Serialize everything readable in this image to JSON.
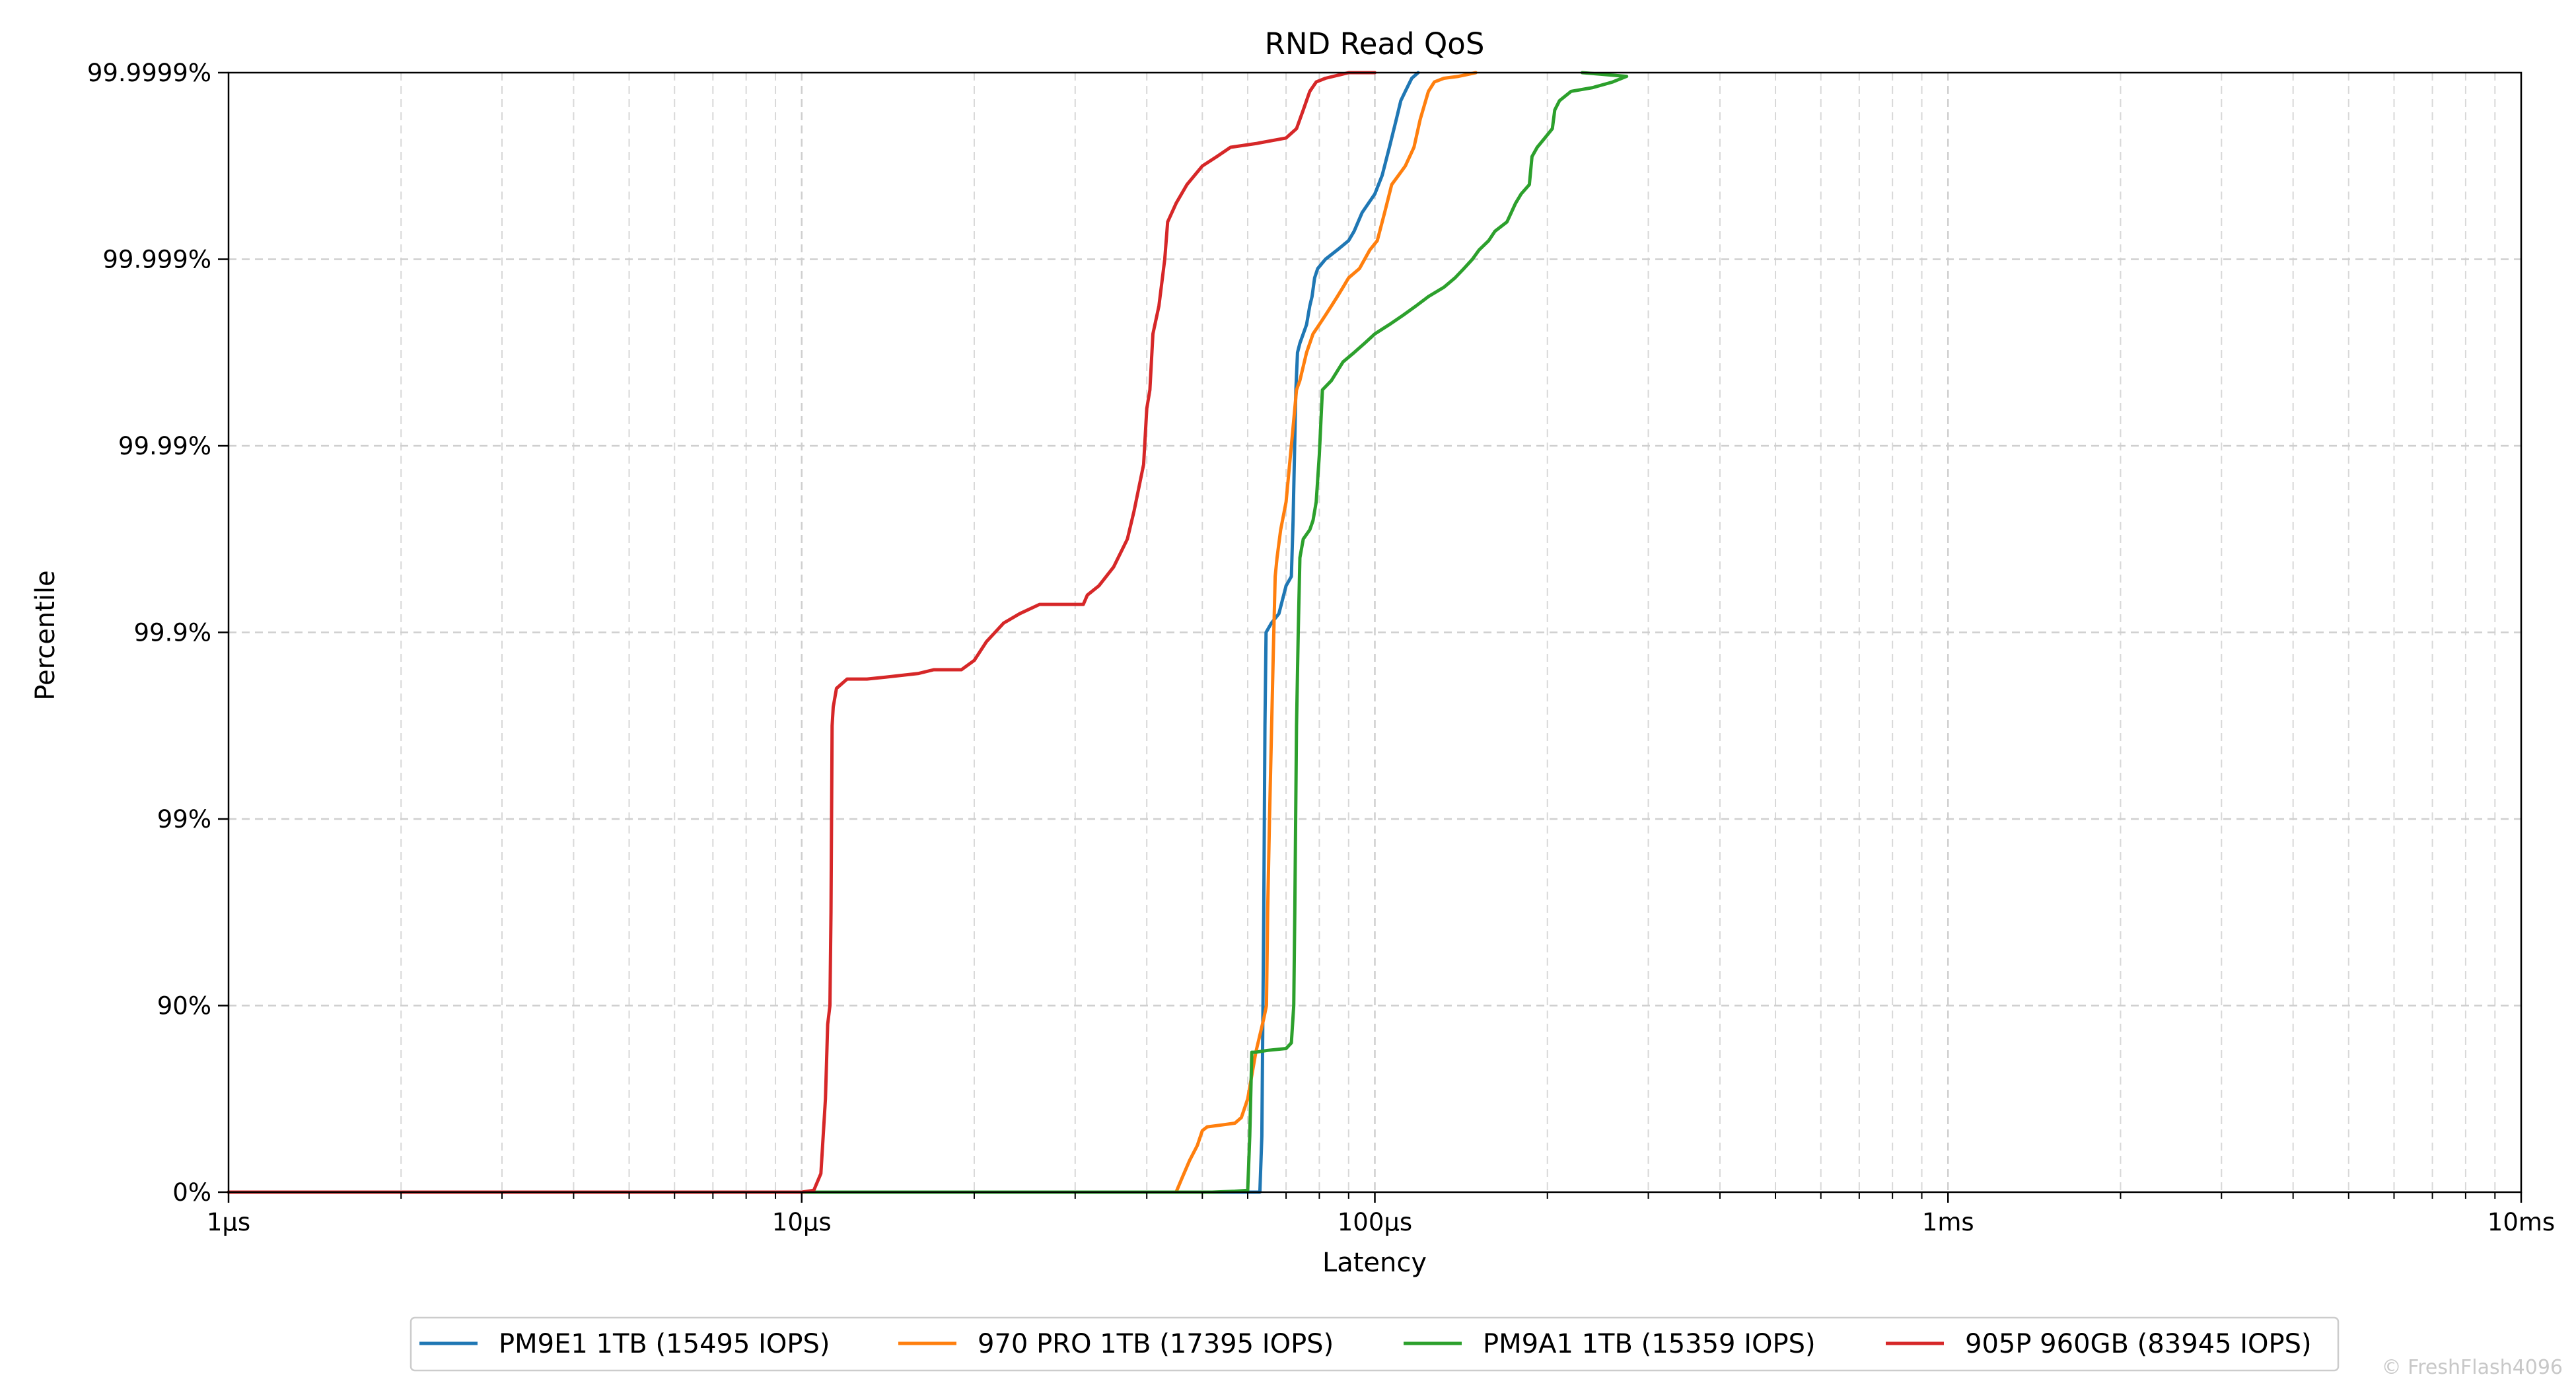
{
  "chart_data": {
    "type": "line",
    "title": "RND Read QoS",
    "xlabel": "Latency",
    "ylabel": "Percentile",
    "x_scale": "log",
    "x_unit": "µs",
    "xlim": [
      1,
      10000
    ],
    "x_ticks": [
      {
        "value": 1,
        "label": "1µs"
      },
      {
        "value": 10,
        "label": "10µs"
      },
      {
        "value": 100,
        "label": "100µs"
      },
      {
        "value": 1000,
        "label": "1ms"
      },
      {
        "value": 10000,
        "label": "10ms"
      }
    ],
    "y_scale": "nines",
    "ylim": [
      0,
      99.9999
    ],
    "y_ticks": [
      {
        "nines": 0,
        "label": "0%"
      },
      {
        "nines": 1,
        "label": "90%"
      },
      {
        "nines": 2,
        "label": "99%"
      },
      {
        "nines": 3,
        "label": "99.9%"
      },
      {
        "nines": 4,
        "label": "99.99%"
      },
      {
        "nines": 5,
        "label": "99.999%"
      },
      {
        "nines": 6,
        "label": "99.9999%"
      }
    ],
    "grid": true,
    "legend_position": "bottom-center",
    "series": [
      {
        "name": "PM9E1 1TB (15495 IOPS)",
        "color": "#1f77b4",
        "points": [
          [
            1,
            0
          ],
          [
            63,
            0
          ],
          [
            63.5,
            0.3
          ],
          [
            64,
            1.5
          ],
          [
            64.3,
            2.5
          ],
          [
            64.6,
            3
          ],
          [
            66,
            3.05
          ],
          [
            68,
            3.1
          ],
          [
            70,
            3.25
          ],
          [
            71.5,
            3.3
          ],
          [
            72,
            3.6
          ],
          [
            72.8,
            4.3
          ],
          [
            73.3,
            4.5
          ],
          [
            74,
            4.55
          ],
          [
            75,
            4.6
          ],
          [
            76,
            4.65
          ],
          [
            77,
            4.75
          ],
          [
            77.7,
            4.8
          ],
          [
            78.5,
            4.9
          ],
          [
            79.5,
            4.95
          ],
          [
            82,
            5.0
          ],
          [
            86,
            5.05
          ],
          [
            90,
            5.1
          ],
          [
            92,
            5.15
          ],
          [
            95,
            5.25
          ],
          [
            100,
            5.35
          ],
          [
            103,
            5.45
          ],
          [
            106,
            5.6
          ],
          [
            109,
            5.75
          ],
          [
            111,
            5.85
          ],
          [
            113,
            5.9
          ],
          [
            116,
            5.97
          ],
          [
            119,
            6.0
          ]
        ]
      },
      {
        "name": "970 PRO 1TB (17395 IOPS)",
        "color": "#ff7f0e",
        "points": [
          [
            1,
            0
          ],
          [
            45,
            0
          ],
          [
            46,
            0.07
          ],
          [
            47.5,
            0.17
          ],
          [
            49,
            0.25
          ],
          [
            50,
            0.33
          ],
          [
            51,
            0.35
          ],
          [
            54,
            0.36
          ],
          [
            57,
            0.37
          ],
          [
            58.5,
            0.4
          ],
          [
            60,
            0.5
          ],
          [
            62,
            0.75
          ],
          [
            64,
            0.93
          ],
          [
            64.7,
            1.0
          ],
          [
            65,
            1.5
          ],
          [
            65.5,
            2.0
          ],
          [
            66.5,
            2.9
          ],
          [
            67,
            3.3
          ],
          [
            67.5,
            3.4
          ],
          [
            68.5,
            3.55
          ],
          [
            70,
            3.7
          ],
          [
            71,
            3.9
          ],
          [
            72,
            4.1
          ],
          [
            73,
            4.3
          ],
          [
            74,
            4.35
          ],
          [
            76,
            4.5
          ],
          [
            78,
            4.6
          ],
          [
            80,
            4.65
          ],
          [
            82,
            4.7
          ],
          [
            84,
            4.75
          ],
          [
            86,
            4.8
          ],
          [
            88,
            4.85
          ],
          [
            90,
            4.9
          ],
          [
            94,
            4.95
          ],
          [
            98,
            5.05
          ],
          [
            101,
            5.1
          ],
          [
            104,
            5.25
          ],
          [
            107,
            5.4
          ],
          [
            110,
            5.45
          ],
          [
            113,
            5.5
          ],
          [
            117,
            5.6
          ],
          [
            120,
            5.75
          ],
          [
            124,
            5.9
          ],
          [
            127,
            5.95
          ],
          [
            132,
            5.97
          ],
          [
            140,
            5.98
          ],
          [
            145,
            5.99
          ],
          [
            150,
            6.0
          ]
        ]
      },
      {
        "name": "PM9A1 1TB (15359 IOPS)",
        "color": "#2ca02c",
        "points": [
          [
            1,
            0
          ],
          [
            52,
            0
          ],
          [
            57,
            0.005
          ],
          [
            60,
            0.01
          ],
          [
            60.5,
            0.3
          ],
          [
            61,
            0.75
          ],
          [
            62,
            0.75
          ],
          [
            65,
            0.76
          ],
          [
            70,
            0.77
          ],
          [
            71.5,
            0.8
          ],
          [
            72.2,
            1.0
          ],
          [
            72.5,
            1.5
          ],
          [
            73,
            2.5
          ],
          [
            73.5,
            3.0
          ],
          [
            74,
            3.4
          ],
          [
            75,
            3.5
          ],
          [
            77,
            3.55
          ],
          [
            78,
            3.6
          ],
          [
            79,
            3.7
          ],
          [
            80,
            3.95
          ],
          [
            81,
            4.3
          ],
          [
            84,
            4.35
          ],
          [
            88,
            4.45
          ],
          [
            92,
            4.5
          ],
          [
            96,
            4.55
          ],
          [
            100,
            4.6
          ],
          [
            106,
            4.65
          ],
          [
            112,
            4.7
          ],
          [
            118,
            4.75
          ],
          [
            124,
            4.8
          ],
          [
            132,
            4.85
          ],
          [
            138,
            4.9
          ],
          [
            143,
            4.95
          ],
          [
            148,
            5.0
          ],
          [
            152,
            5.05
          ],
          [
            158,
            5.1
          ],
          [
            162,
            5.15
          ],
          [
            170,
            5.2
          ],
          [
            176,
            5.3
          ],
          [
            180,
            5.35
          ],
          [
            186,
            5.4
          ],
          [
            188,
            5.55
          ],
          [
            192,
            5.6
          ],
          [
            198,
            5.65
          ],
          [
            204,
            5.7
          ],
          [
            206,
            5.8
          ],
          [
            210,
            5.85
          ],
          [
            220,
            5.9
          ],
          [
            240,
            5.92
          ],
          [
            260,
            5.95
          ],
          [
            275,
            5.98
          ],
          [
            230,
            6.0
          ]
        ]
      },
      {
        "name": "905P 960GB (83945 IOPS)",
        "color": "#d62728",
        "points": [
          [
            1,
            0
          ],
          [
            10,
            0
          ],
          [
            10.5,
            0.01
          ],
          [
            10.8,
            0.1
          ],
          [
            11,
            0.5
          ],
          [
            11.1,
            0.9
          ],
          [
            11.2,
            1.0
          ],
          [
            11.25,
            1.5
          ],
          [
            11.3,
            2.5
          ],
          [
            11.35,
            2.6
          ],
          [
            11.5,
            2.7
          ],
          [
            12,
            2.75
          ],
          [
            13,
            2.75
          ],
          [
            14,
            2.76
          ],
          [
            16,
            2.78
          ],
          [
            17,
            2.8
          ],
          [
            19,
            2.8
          ],
          [
            20,
            2.85
          ],
          [
            21,
            2.95
          ],
          [
            22.5,
            3.05
          ],
          [
            24,
            3.1
          ],
          [
            26,
            3.15
          ],
          [
            28,
            3.15
          ],
          [
            31,
            3.15
          ],
          [
            31.5,
            3.2
          ],
          [
            33,
            3.25
          ],
          [
            35,
            3.35
          ],
          [
            37,
            3.5
          ],
          [
            38,
            3.65
          ],
          [
            39.5,
            3.9
          ],
          [
            40,
            4.2
          ],
          [
            40.5,
            4.3
          ],
          [
            41,
            4.6
          ],
          [
            42,
            4.75
          ],
          [
            43,
            5.0
          ],
          [
            43.5,
            5.2
          ],
          [
            45,
            5.3
          ],
          [
            47,
            5.4
          ],
          [
            50,
            5.5
          ],
          [
            53,
            5.55
          ],
          [
            56,
            5.6
          ],
          [
            62,
            5.62
          ],
          [
            70,
            5.65
          ],
          [
            73,
            5.7
          ],
          [
            75,
            5.8
          ],
          [
            77,
            5.9
          ],
          [
            79,
            5.95
          ],
          [
            82,
            5.97
          ],
          [
            90,
            6.0
          ],
          [
            100,
            6.0
          ]
        ]
      }
    ],
    "watermark": "© FreshFlash4096"
  }
}
